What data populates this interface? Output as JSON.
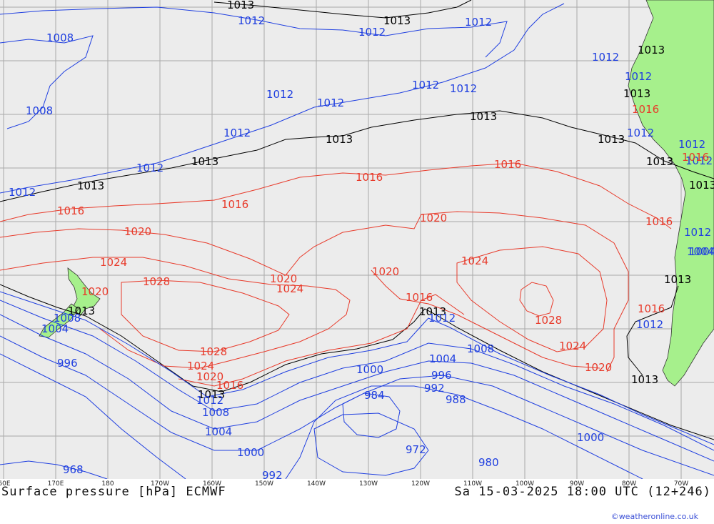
{
  "footer": {
    "title": "Surface pressure [hPa] ECMWF",
    "datetime": "Sa 15-03-2025 18:00 UTC (12+246)",
    "credit": "©weatheronline.co.uk"
  },
  "longitude_labels": [
    "60E",
    "170E",
    "180",
    "170W",
    "160W",
    "150W",
    "140W",
    "130W",
    "120W",
    "110W",
    "100W",
    "90W",
    "80W",
    "70W"
  ],
  "colors": {
    "ocean": "#ececec",
    "land": "#a6f08c",
    "grid": "#a9a9a9",
    "low_isobar": "#1f3fe0",
    "high_isobar": "#e83a2a",
    "standard_isobar": "#000000"
  },
  "isobar_labels": {
    "black": [
      "1013",
      "1013",
      "1013",
      "1013",
      "1013",
      "1013",
      "1013",
      "1013",
      "1013",
      "1013",
      "1013",
      "1013",
      "1013",
      "1013",
      "1013",
      "1013"
    ],
    "blue": [
      "1012",
      "1008",
      "1012",
      "1012",
      "1008",
      "1012",
      "1012",
      "1012",
      "1012",
      "1012",
      "1012",
      "1012",
      "1012",
      "1012",
      "1012",
      "1012",
      "1008",
      "1012",
      "1004",
      "1004",
      "996",
      "1012",
      "1008",
      "1004",
      "1000",
      "968",
      "992",
      "984",
      "972",
      "1004",
      "1000",
      "996",
      "992",
      "988",
      "980",
      "1000",
      "1008",
      "1012",
      "1012",
      "1012",
      "1004"
    ],
    "red": [
      "1016",
      "1016",
      "1016",
      "1016",
      "1020",
      "1020",
      "1024",
      "1028",
      "1020",
      "1024",
      "1020",
      "1028",
      "1024",
      "1020",
      "1016",
      "1020",
      "1024",
      "1028",
      "1024",
      "1020",
      "1016",
      "1016",
      "1016",
      "1016",
      "1016"
    ]
  }
}
